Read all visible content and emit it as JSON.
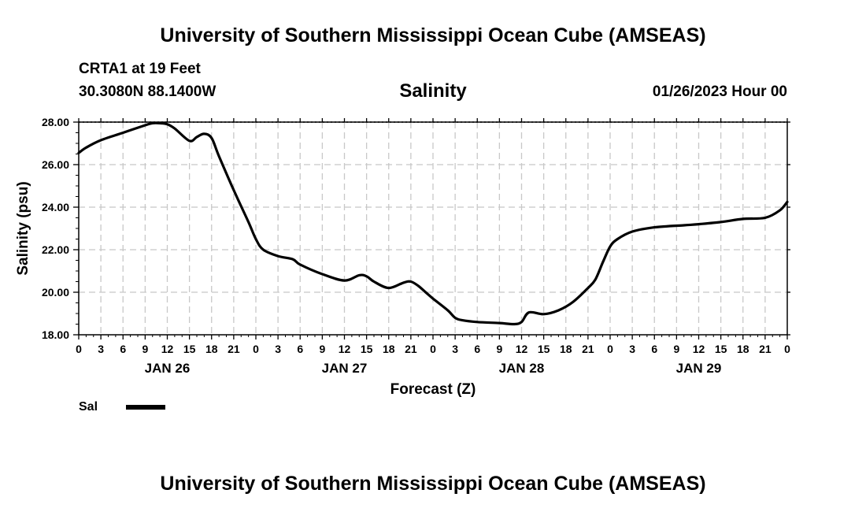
{
  "header": {
    "title": "University of Southern Mississippi Ocean Cube (AMSEAS)",
    "station": "CRTA1 at 19 Feet",
    "coords": "30.3080N  88.1400W",
    "date": "01/26/2023 Hour 00"
  },
  "footer": {
    "title": "University of Southern Mississippi Ocean Cube (AMSEAS)"
  },
  "chart_data": {
    "type": "line",
    "title": "Salinity",
    "xlabel": "Forecast (Z)",
    "ylabel": "Salinity (psu)",
    "ylim": [
      18,
      28
    ],
    "yticks": [
      "18.00",
      "20.00",
      "22.00",
      "24.00",
      "26.00",
      "28.00"
    ],
    "x_hours_range": [
      0,
      96
    ],
    "x_tick_labels": [
      "0",
      "3",
      "6",
      "9",
      "12",
      "15",
      "18",
      "21",
      "0",
      "3",
      "6",
      "9",
      "12",
      "15",
      "18",
      "21",
      "0",
      "3",
      "6",
      "9",
      "12",
      "15",
      "18",
      "21",
      "0",
      "3",
      "6",
      "9",
      "12",
      "15",
      "18",
      "21",
      "0"
    ],
    "day_labels": [
      "JAN 26",
      "JAN 27",
      "JAN 28",
      "JAN 29"
    ],
    "grid": true,
    "legend": "bottom-left",
    "series": [
      {
        "name": "Sal",
        "color": "#000000",
        "x": [
          0,
          1,
          3,
          6,
          9,
          10,
          11,
          12,
          13,
          15,
          16,
          17,
          18,
          19,
          21,
          23,
          24,
          25,
          27,
          29,
          30,
          33,
          36,
          38,
          39,
          40,
          42,
          44,
          45,
          46,
          47,
          48,
          50,
          51,
          52,
          54,
          57,
          59,
          60,
          61,
          63,
          65,
          67,
          69,
          70,
          71,
          72,
          73,
          75,
          78,
          82,
          84,
          87,
          90,
          93,
          95,
          96
        ],
        "values": [
          26.55,
          26.8,
          27.15,
          27.5,
          27.85,
          27.95,
          27.95,
          27.9,
          27.7,
          27.12,
          27.3,
          27.45,
          27.25,
          26.4,
          24.8,
          23.3,
          22.5,
          22.0,
          21.7,
          21.55,
          21.3,
          20.85,
          20.55,
          20.8,
          20.75,
          20.5,
          20.2,
          20.45,
          20.5,
          20.3,
          20.0,
          19.7,
          19.15,
          18.8,
          18.68,
          18.6,
          18.55,
          18.5,
          18.6,
          19.05,
          18.97,
          19.15,
          19.55,
          20.2,
          20.6,
          21.4,
          22.15,
          22.5,
          22.85,
          23.05,
          23.15,
          23.2,
          23.3,
          23.45,
          23.5,
          23.85,
          24.25
        ]
      }
    ]
  }
}
